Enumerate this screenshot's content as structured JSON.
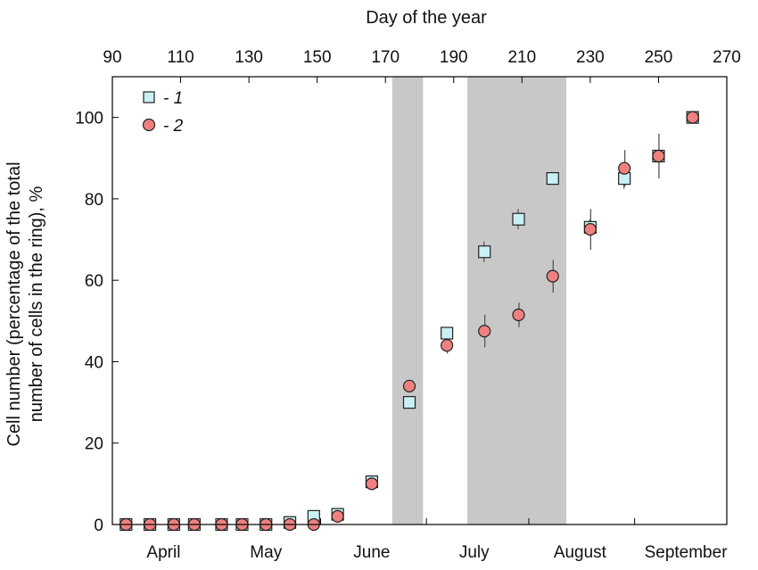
{
  "chart_data": {
    "type": "scatter",
    "title": "",
    "x_top_label": "Day of the year",
    "ylabel_lines": [
      "Cell number (percentage of the total",
      "number of cells in the ring), %"
    ],
    "xlim": [
      90,
      270
    ],
    "ylim": [
      0,
      110
    ],
    "x_ticks": [
      90,
      110,
      130,
      150,
      170,
      190,
      210,
      230,
      250,
      270
    ],
    "y_ticks": [
      0,
      20,
      40,
      60,
      80,
      100
    ],
    "month_labels": [
      {
        "label": "April",
        "x": 105
      },
      {
        "label": "May",
        "x": 135
      },
      {
        "label": "June",
        "x": 166
      },
      {
        "label": "July",
        "x": 196
      },
      {
        "label": "August",
        "x": 227
      },
      {
        "label": "September",
        "x": 258
      }
    ],
    "month_boundaries": [
      90,
      121,
      151,
      182,
      212,
      243,
      273
    ],
    "shaded_ranges": [
      [
        172,
        181
      ],
      [
        194,
        223
      ]
    ],
    "colors": {
      "series1": "#c9f0f4",
      "series2": "#f08080",
      "shade": "#c8c8c8",
      "error": "#555555"
    },
    "legend": {
      "placement": "top-left"
    },
    "series": [
      {
        "name": "- 1",
        "marker": "square",
        "points": [
          {
            "x": 94,
            "y": 0
          },
          {
            "x": 101,
            "y": 0
          },
          {
            "x": 108,
            "y": 0
          },
          {
            "x": 114,
            "y": 0
          },
          {
            "x": 122,
            "y": 0
          },
          {
            "x": 128,
            "y": 0
          },
          {
            "x": 135,
            "y": 0
          },
          {
            "x": 142,
            "y": 0.5
          },
          {
            "x": 149,
            "y": 2
          },
          {
            "x": 156,
            "y": 2.5
          },
          {
            "x": 166,
            "y": 10.5
          },
          {
            "x": 177,
            "y": 30
          },
          {
            "x": 188,
            "y": 47
          },
          {
            "x": 199,
            "y": 67,
            "err": 2.5
          },
          {
            "x": 209,
            "y": 75,
            "err": 2.5
          },
          {
            "x": 219,
            "y": 85,
            "err": 1.5
          },
          {
            "x": 230,
            "y": 73,
            "err": 2
          },
          {
            "x": 240,
            "y": 85,
            "err": 2.5
          },
          {
            "x": 250,
            "y": 90.5,
            "err": 1.5
          },
          {
            "x": 260,
            "y": 100
          }
        ]
      },
      {
        "name": "- 2",
        "marker": "circle",
        "points": [
          {
            "x": 94,
            "y": 0
          },
          {
            "x": 101,
            "y": 0
          },
          {
            "x": 108,
            "y": 0
          },
          {
            "x": 114,
            "y": 0
          },
          {
            "x": 122,
            "y": 0
          },
          {
            "x": 128,
            "y": 0
          },
          {
            "x": 135,
            "y": 0
          },
          {
            "x": 142,
            "y": 0
          },
          {
            "x": 149,
            "y": 0
          },
          {
            "x": 156,
            "y": 2
          },
          {
            "x": 166,
            "y": 10
          },
          {
            "x": 177,
            "y": 34
          },
          {
            "x": 188,
            "y": 44,
            "err": 2
          },
          {
            "x": 199,
            "y": 47.5,
            "err": 4
          },
          {
            "x": 209,
            "y": 51.5,
            "err": 3
          },
          {
            "x": 219,
            "y": 61,
            "err": 4
          },
          {
            "x": 230,
            "y": 72.5,
            "err": 5
          },
          {
            "x": 240,
            "y": 87.5,
            "err": 4.5
          },
          {
            "x": 250,
            "y": 90.5,
            "err": 5.5
          },
          {
            "x": 260,
            "y": 100
          }
        ]
      }
    ]
  }
}
